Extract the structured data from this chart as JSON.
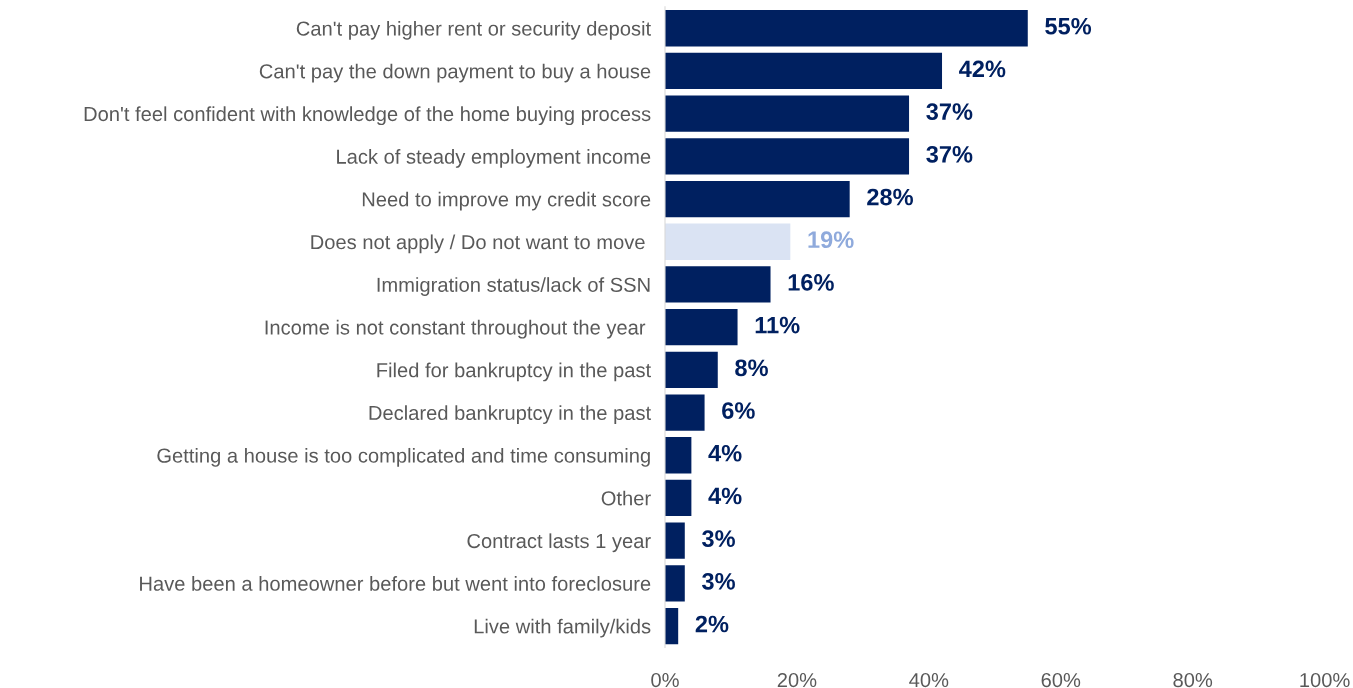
{
  "chart_data": {
    "type": "bar",
    "orientation": "horizontal",
    "categories": [
      "Can't pay higher rent or security deposit",
      "Can't pay the down payment to buy a house",
      "Don't feel confident with knowledge of the home buying process",
      "Lack of steady employment income",
      "Need to improve my credit score",
      "Does not apply / Do not want to move ",
      "Immigration status/lack of SSN",
      "Income is not constant throughout the year ",
      "Filed for bankruptcy in the past",
      "Declared bankruptcy in the past",
      "Getting a house is too complicated and time consuming",
      "Other",
      "Contract lasts 1 year",
      "Have been a homeowner before but went into foreclosure",
      "Live with family/kids"
    ],
    "values": [
      55,
      42,
      37,
      37,
      28,
      19,
      16,
      11,
      8,
      6,
      4,
      4,
      3,
      3,
      2
    ],
    "value_labels": [
      "55%",
      "42%",
      "37%",
      "37%",
      "28%",
      "19%",
      "16%",
      "11%",
      "8%",
      "6%",
      "4%",
      "4%",
      "3%",
      "3%",
      "2%"
    ],
    "colors": [
      "#002060",
      "#002060",
      "#002060",
      "#002060",
      "#002060",
      "#dae3f3",
      "#002060",
      "#002060",
      "#002060",
      "#002060",
      "#002060",
      "#002060",
      "#002060",
      "#002060",
      "#002060"
    ],
    "xlim": [
      0,
      100
    ],
    "xticks": [
      {
        "value": 0,
        "label": "0%"
      },
      {
        "value": 20,
        "label": "20%"
      },
      {
        "value": 40,
        "label": "40%"
      },
      {
        "value": 60,
        "label": "60%"
      },
      {
        "value": 80,
        "label": "80%"
      },
      {
        "value": 100,
        "label": "100%"
      }
    ],
    "grid": false,
    "legend": false
  }
}
